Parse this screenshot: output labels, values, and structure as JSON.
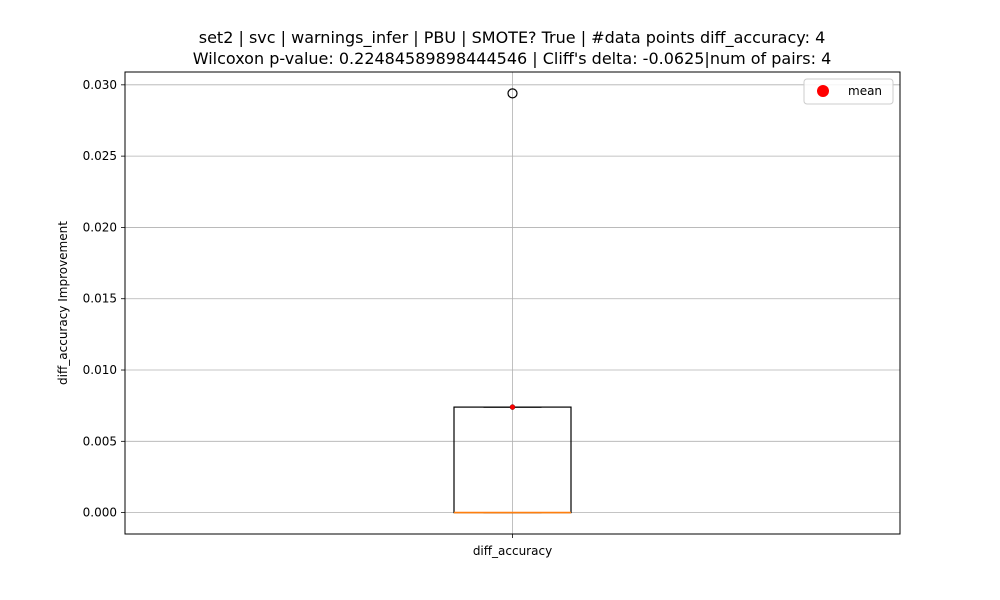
{
  "chart_data": {
    "type": "box",
    "title_line1": "set2 | svc | warnings_infer | PBU | SMOTE? True | #data points diff_accuracy: 4",
    "title_line2": "Wilcoxon p-value: 0.22484589898444546 | Cliff's delta: -0.0625|num of pairs: 4",
    "xlabel": "",
    "ylabel": "diff_accuracy Improvement",
    "categories": [
      "diff_accuracy"
    ],
    "ylim": [
      -0.0015,
      0.0309
    ],
    "yticks": [
      0.0,
      0.005,
      0.01,
      0.015,
      0.02,
      0.025,
      0.03
    ],
    "ytick_labels": [
      "0.000",
      "0.005",
      "0.010",
      "0.015",
      "0.020",
      "0.025",
      "0.030"
    ],
    "grid": true,
    "box": {
      "whisker_low": 0.0,
      "q1": 0.0,
      "median": 0.0,
      "q3": 0.0074,
      "whisker_high": 0.0074,
      "mean": 0.0074,
      "outliers": [
        0.0294
      ]
    },
    "legend": {
      "position": "top-right",
      "entries": [
        {
          "label": "mean",
          "color": "#ff0000"
        }
      ]
    },
    "colors": {
      "box": "#000000",
      "median": "#ff7f0e",
      "mean": "#ff0000",
      "grid": "#b0b0b0"
    }
  }
}
